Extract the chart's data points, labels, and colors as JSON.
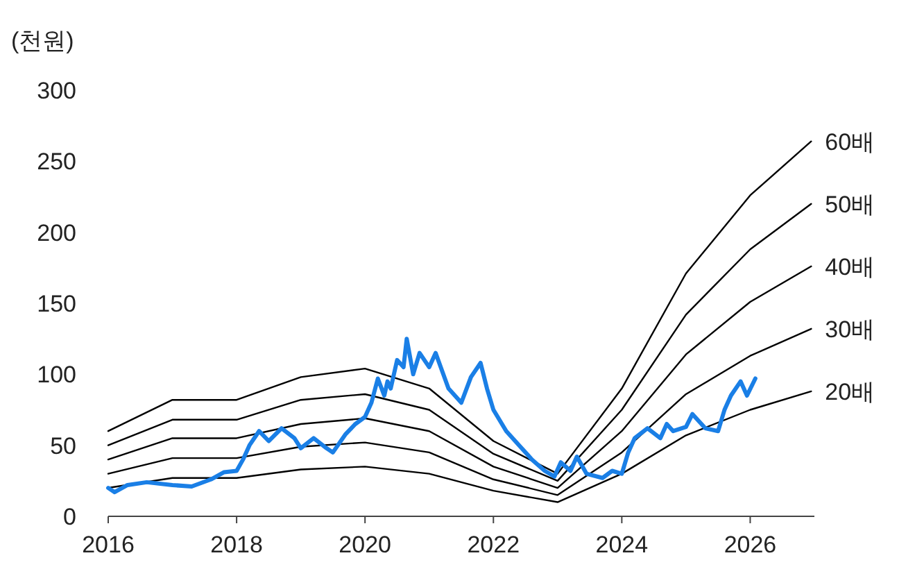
{
  "chart_data": {
    "type": "line",
    "ylabel": "(천원)",
    "xlim": [
      2016,
      2027
    ],
    "xticks": [
      2016,
      2018,
      2020,
      2022,
      2024,
      2026
    ],
    "ylim": [
      0,
      300
    ],
    "yticks": [
      0,
      50,
      100,
      150,
      200,
      250,
      300
    ],
    "marker": "none",
    "line_style": "solid",
    "x": [
      2016,
      2017,
      2018,
      2019,
      2020,
      2021,
      2022,
      2023,
      2024,
      2025,
      2026,
      2026.95
    ],
    "series": [
      {
        "name": "60배",
        "color": "#000000",
        "values": [
          60,
          82,
          82,
          98,
          104,
          90,
          53,
          30,
          90,
          171,
          226,
          264
        ]
      },
      {
        "name": "50배",
        "color": "#000000",
        "values": [
          50,
          68,
          68,
          82,
          86,
          75,
          44,
          25,
          75,
          142,
          188,
          220
        ]
      },
      {
        "name": "40배",
        "color": "#000000",
        "values": [
          40,
          55,
          55,
          65,
          69,
          60,
          35,
          20,
          60,
          114,
          151,
          176
        ]
      },
      {
        "name": "30배",
        "color": "#000000",
        "values": [
          30,
          41,
          41,
          49,
          52,
          45,
          26,
          15,
          45,
          86,
          113,
          132
        ]
      },
      {
        "name": "20배",
        "color": "#000000",
        "values": [
          20,
          27,
          27,
          33,
          35,
          30,
          18,
          10,
          30,
          57,
          75,
          88
        ]
      },
      {
        "color": "#1a7fe6",
        "x": [
          2016.0,
          2016.1,
          2016.3,
          2016.6,
          2017.0,
          2017.3,
          2017.6,
          2017.8,
          2018.0,
          2018.1,
          2018.2,
          2018.35,
          2018.5,
          2018.7,
          2018.9,
          2019.0,
          2019.2,
          2019.4,
          2019.5,
          2019.7,
          2019.85,
          2020.0,
          2020.1,
          2020.2,
          2020.3,
          2020.35,
          2020.4,
          2020.5,
          2020.6,
          2020.65,
          2020.75,
          2020.85,
          2021.0,
          2021.1,
          2021.3,
          2021.5,
          2021.65,
          2021.8,
          2021.9,
          2022.0,
          2022.2,
          2022.4,
          2022.6,
          2022.8,
          2022.95,
          2023.05,
          2023.2,
          2023.3,
          2023.45,
          2023.7,
          2023.85,
          2024.0,
          2024.1,
          2024.2,
          2024.4,
          2024.6,
          2024.7,
          2024.8,
          2025.0,
          2025.1,
          2025.3,
          2025.5,
          2025.6,
          2025.7,
          2025.85,
          2025.95,
          2026.08
        ],
        "values": [
          20,
          17,
          22,
          24,
          22,
          21,
          26,
          31,
          32,
          40,
          50,
          60,
          53,
          62,
          55,
          48,
          55,
          48,
          45,
          58,
          65,
          70,
          80,
          97,
          85,
          95,
          90,
          110,
          105,
          125,
          100,
          115,
          105,
          115,
          90,
          80,
          98,
          108,
          90,
          75,
          60,
          50,
          40,
          32,
          28,
          38,
          32,
          42,
          30,
          27,
          32,
          30,
          45,
          55,
          62,
          55,
          65,
          60,
          63,
          72,
          62,
          60,
          75,
          85,
          95,
          85,
          97
        ]
      }
    ]
  }
}
